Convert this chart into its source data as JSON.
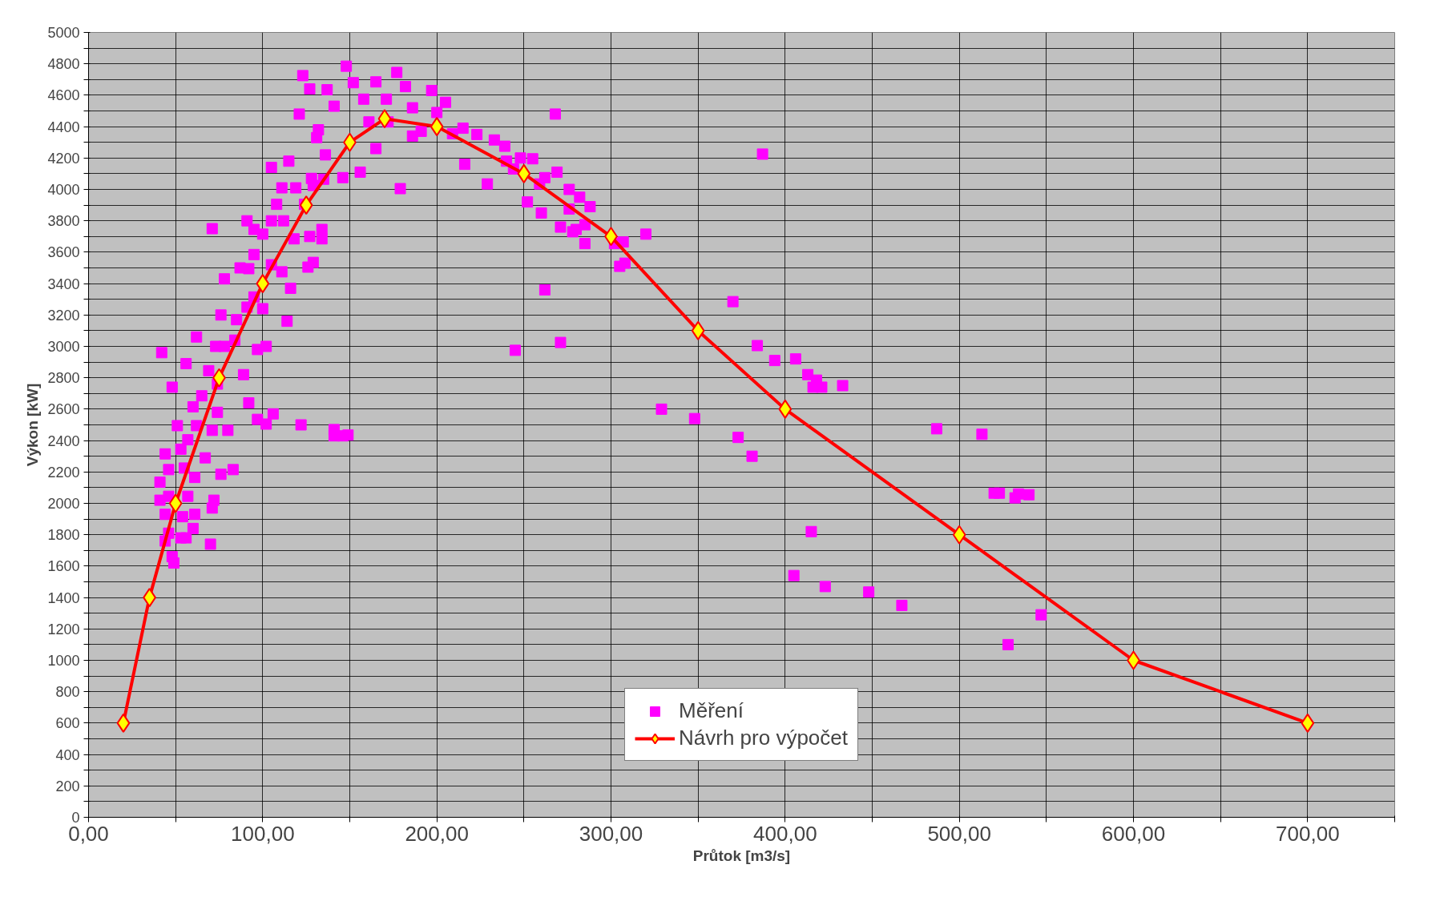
{
  "chart_data": {
    "type": "scatter",
    "xlabel": "Průtok [m3/s]",
    "ylabel": "Výkon [kW]",
    "xlim": [
      0,
      750
    ],
    "ylim": [
      0,
      5000
    ],
    "xticks": [
      {
        "value": 0,
        "label": "0,00"
      },
      {
        "value": 50,
        "label": null
      },
      {
        "value": 100,
        "label": "100,00"
      },
      {
        "value": 150,
        "label": null
      },
      {
        "value": 200,
        "label": "200,00"
      },
      {
        "value": 250,
        "label": null
      },
      {
        "value": 300,
        "label": "300,00"
      },
      {
        "value": 350,
        "label": null
      },
      {
        "value": 400,
        "label": "400,00"
      },
      {
        "value": 450,
        "label": null
      },
      {
        "value": 500,
        "label": "500,00"
      },
      {
        "value": 550,
        "label": null
      },
      {
        "value": 600,
        "label": "600,00"
      },
      {
        "value": 650,
        "label": null
      },
      {
        "value": 700,
        "label": "700,00"
      },
      {
        "value": 750,
        "label": null
      }
    ],
    "yticks": [
      0,
      {
        "value": 100,
        "label": null
      },
      200,
      {
        "value": 300,
        "label": null
      },
      400,
      {
        "value": 500,
        "label": null
      },
      600,
      {
        "value": 700,
        "label": null
      },
      800,
      {
        "value": 900,
        "label": null
      },
      1000,
      {
        "value": 1100,
        "label": null
      },
      1200,
      {
        "value": 1300,
        "label": null
      },
      1400,
      {
        "value": 1500,
        "label": null
      },
      1600,
      {
        "value": 1700,
        "label": null
      },
      1800,
      {
        "value": 1900,
        "label": null
      },
      2000,
      {
        "value": 2100,
        "label": null
      },
      2200,
      {
        "value": 2300,
        "label": null
      },
      2400,
      {
        "value": 2500,
        "label": null
      },
      2600,
      {
        "value": 2700,
        "label": null
      },
      2800,
      {
        "value": 2900,
        "label": null
      },
      3000,
      {
        "value": 3100,
        "label": null
      },
      3200,
      {
        "value": 3300,
        "label": null
      },
      3400,
      {
        "value": 3500,
        "label": null
      },
      3600,
      {
        "value": 3700,
        "label": null
      },
      3800,
      {
        "value": 3900,
        "label": null
      },
      4000,
      {
        "value": 4100,
        "label": null
      },
      4200,
      {
        "value": 4300,
        "label": null
      },
      4400,
      {
        "value": 4500,
        "label": null
      },
      4600,
      {
        "value": 4700,
        "label": null
      },
      4800,
      {
        "value": 4900,
        "label": null
      },
      5000
    ],
    "grid": true,
    "legend": "bottom",
    "series": [
      {
        "name": "Měření",
        "marker": "square",
        "color": "#ff00ff",
        "x": [
          42,
          48,
          70,
          71,
          78,
          245,
          262,
          271,
          268,
          320,
          329,
          348,
          370,
          373,
          381,
          384,
          387,
          394,
          406,
          405,
          413,
          416,
          418,
          421,
          415,
          423,
          433,
          448,
          467,
          487,
          513,
          520,
          523,
          532,
          534,
          540,
          528,
          547,
          305,
          308,
          307,
          302,
          278,
          285,
          252,
          260,
          229,
          216,
          179,
          156,
          165,
          146,
          141,
          141,
          146,
          149,
          122,
          106,
          102,
          97,
          92,
          89,
          83,
          76,
          72,
          71,
          67,
          56,
          62,
          76,
          85,
          91,
          114,
          102,
          97,
          123,
          148,
          177,
          121,
          127,
          137,
          152,
          165,
          182,
          197,
          205,
          209,
          215,
          223,
          233,
          239,
          240,
          248,
          255,
          262,
          269,
          276,
          282,
          288,
          276,
          271,
          280,
          285,
          259,
          244,
          186,
          191,
          172,
          161,
          158,
          171,
          186,
          200,
          141,
          132,
          131,
          136,
          135,
          128,
          124,
          129,
          119,
          111,
          115,
          105,
          108,
          112,
          105,
          100,
          95,
          118,
          127,
          134,
          134,
          129,
          126,
          116,
          111,
          105,
          95,
          92,
          95,
          100,
          91,
          87,
          84,
          78,
          73,
          69,
          74,
          65,
          60,
          74,
          80,
          71,
          62,
          57,
          51,
          53,
          44,
          41,
          46,
          55,
          61,
          41,
          46,
          57,
          44,
          54,
          61,
          46,
          53,
          60,
          44,
          48,
          49,
          56
        ],
        "values": [
          2960,
          2740,
          1740,
          3750,
          3430,
          2975,
          3360,
          3025,
          4480,
          3715,
          2600,
          2540,
          3285,
          2420,
          2300,
          3005,
          4225,
          2910,
          2920,
          1540,
          2820,
          2740,
          2785,
          2740,
          1820,
          1470,
          2750,
          1435,
          1350,
          2475,
          2440,
          2065,
          2065,
          2035,
          2060,
          2055,
          1100,
          1290,
          3510,
          3530,
          3665,
          3655,
          3730,
          3775,
          3920,
          3850,
          4035,
          4160,
          4005,
          4110,
          4260,
          4075,
          2470,
          2430,
          2430,
          2435,
          2500,
          2570,
          2505,
          2535,
          2640,
          2820,
          2215,
          2185,
          2020,
          1970,
          2290,
          2890,
          3060,
          3200,
          3170,
          3800,
          3160,
          3000,
          2980,
          4725,
          4785,
          4745,
          4480,
          4640,
          4635,
          4680,
          4685,
          4655,
          4630,
          4555,
          4355,
          4390,
          4350,
          4315,
          4275,
          4180,
          4200,
          4195,
          4075,
          4110,
          4000,
          3950,
          3890,
          3875,
          3760,
          3745,
          3655,
          4035,
          4130,
          4340,
          4370,
          4430,
          4430,
          4575,
          4575,
          4520,
          4490,
          4530,
          4380,
          4330,
          4220,
          4065,
          4070,
          3905,
          4025,
          4010,
          4010,
          4180,
          4140,
          3905,
          3800,
          3800,
          3715,
          3745,
          3685,
          3700,
          3745,
          3685,
          3535,
          3505,
          3370,
          3475,
          3520,
          3585,
          3495,
          3315,
          3240,
          3250,
          3500,
          3040,
          3000,
          3000,
          2845,
          2760,
          2685,
          2615,
          2580,
          2465,
          2465,
          2495,
          2405,
          2495,
          2345,
          2315,
          2135,
          2215,
          2225,
          2165,
          2020,
          2045,
          2045,
          1930,
          1915,
          1930,
          1810,
          1780,
          1840,
          1760,
          1660,
          1620,
          1780
        ]
      },
      {
        "name": "Návrh pro výpočet",
        "type": "line",
        "marker": "diamond",
        "line_style": "solid",
        "color": "#ff0000",
        "x": [
          20,
          35,
          50,
          75,
          100,
          125,
          150,
          170,
          200,
          250,
          300,
          350,
          400,
          500,
          600,
          700
        ],
        "values": [
          600,
          1400,
          2000,
          2800,
          3400,
          3900,
          4300,
          4450,
          4400,
          4100,
          3700,
          3100,
          2600,
          1800,
          1000,
          600
        ]
      }
    ]
  }
}
